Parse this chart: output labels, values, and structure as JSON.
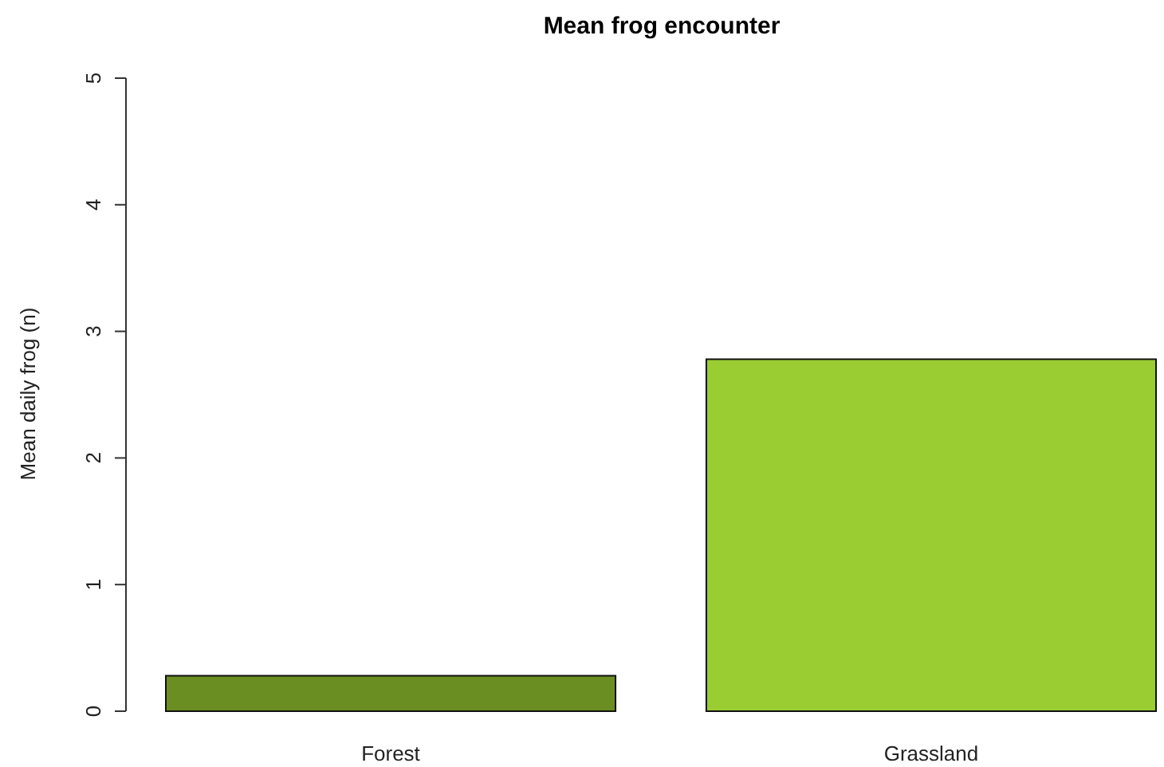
{
  "chart_data": {
    "type": "bar",
    "title": "Mean frog encounter",
    "ylabel": "Mean daily frog (n)",
    "categories": [
      "Forest",
      "Grassland"
    ],
    "values": [
      0.28,
      2.78
    ],
    "colors": [
      "#6b8e23",
      "#9acd32"
    ],
    "ylim": [
      0,
      5
    ],
    "yticks": [
      0,
      1,
      2,
      3,
      4,
      5
    ],
    "grid": false
  }
}
